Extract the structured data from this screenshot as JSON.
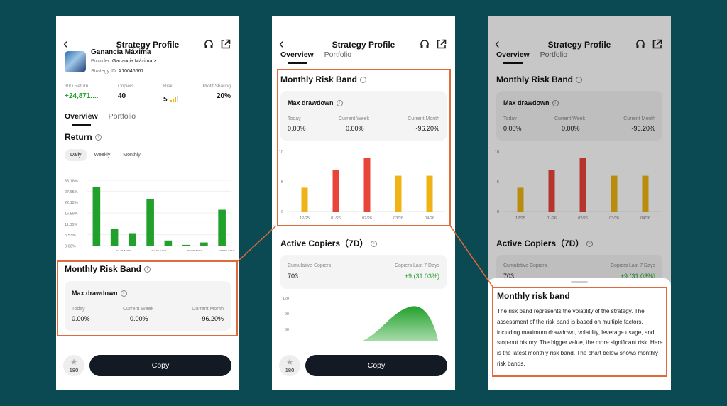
{
  "screens": {
    "nav": {
      "back_glyph": "‹",
      "title": "Strategy Profile"
    },
    "tabs": [
      "Overview",
      "Portfolio"
    ],
    "profile": {
      "name": "Ganancia Máxima",
      "provider_label": "Provider:",
      "provider": "Ganancia Máxima >",
      "id_label": "Strategy ID:",
      "id": "A10046667"
    },
    "stats": [
      {
        "label": "30D Return",
        "value": "+24,871...."
      },
      {
        "label": "Copiers",
        "value": "40"
      },
      {
        "label": "Risk",
        "value": "5"
      },
      {
        "label": "Profit Sharing",
        "value": "20%"
      }
    ],
    "return_section": {
      "title": "Return",
      "periods": [
        "Daily",
        "Weekly",
        "Monthly"
      ],
      "selected_period": "Daily"
    },
    "risk_band": {
      "title": "Monthly Risk Band",
      "card_title": "Max drawdown",
      "cols": [
        {
          "label": "Today",
          "value": "0.00%"
        },
        {
          "label": "Current Week",
          "value": "0.00%"
        },
        {
          "label": "Current Month",
          "value": "-96.20%"
        }
      ]
    },
    "active_copiers": {
      "title": "Active Copiers（7D）",
      "cum_label": "Cumulative Copiers",
      "cum_value": "703",
      "last_label": "Copiers Last 7 Days",
      "last_value": "+9 (31.03%)"
    },
    "bottom": {
      "favorites": "180",
      "copy_label": "Copy"
    },
    "sheet": {
      "title": "Monthly risk band",
      "body": "The risk band represents the volatility of the strategy. The assessment of the risk band is based on multiple factors, including maximum drawdown, volatility, leverage usage, and stop-out history. The bigger value, the more significant risk. Here is the latest monthly risk band. The chart below shows monthly risk bands."
    },
    "colors": {
      "green": "#22a02c",
      "red": "#e8443a",
      "yellow": "#efb413",
      "highlight": "#e06a3a",
      "dark_button": "#141a24",
      "background": "#0b4a52"
    },
    "icons": [
      "back-arrow-icon",
      "headset-icon",
      "share-icon",
      "info-icon",
      "star-icon",
      "risk-bars-icon"
    ]
  },
  "chart_data": [
    {
      "type": "bar",
      "name_hint": "return",
      "ytick_labels": [
        "33.18%",
        "27.65%",
        "22.12%",
        "16.59%",
        "11.06%",
        "5.53%",
        "0.00%"
      ],
      "ylim": [
        0,
        33.18
      ],
      "xtick_labels": [
        "21/04/26",
        "23/04/26",
        "26/04/26",
        "28/04/26"
      ],
      "values": [
        29.9,
        8.6,
        6.3,
        23.6,
        2.6,
        0.4,
        1.6,
        18.2
      ],
      "color": "#22a02c"
    },
    {
      "type": "bar",
      "name_hint": "risk_band",
      "categories": [
        "12/25",
        "01/26",
        "02/26",
        "03/26",
        "04/26"
      ],
      "values": [
        4,
        7,
        9,
        6,
        6
      ],
      "colors": [
        "#efb413",
        "#e8443a",
        "#e8443a",
        "#efb413",
        "#efb413"
      ],
      "ytick_labels": [
        "10",
        "5",
        "0"
      ],
      "ylim": [
        0,
        10
      ]
    },
    {
      "type": "area",
      "name_hint": "active_copiers",
      "ytick_labels": [
        "120",
        "90",
        "60"
      ],
      "color": "#22a02c"
    }
  ]
}
